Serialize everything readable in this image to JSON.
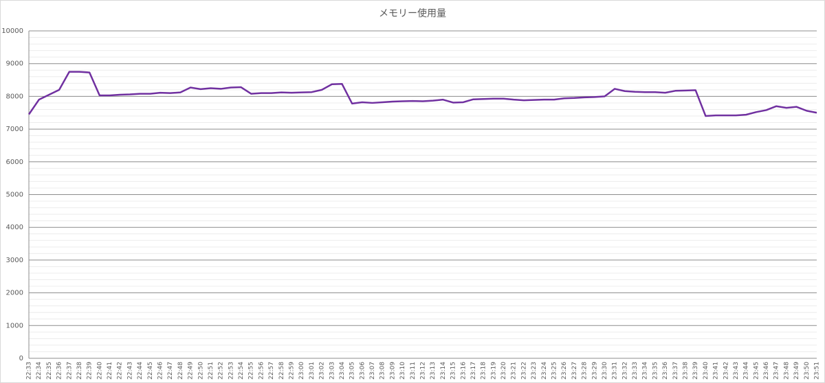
{
  "chart_data": {
    "type": "line",
    "title": "メモリー使用量",
    "categories": [
      "22:33",
      "22:34",
      "22:35",
      "22:36",
      "22:37",
      "22:38",
      "22:39",
      "22:40",
      "22:41",
      "22:42",
      "22:43",
      "22:44",
      "22:45",
      "22:46",
      "22:47",
      "22:48",
      "22:49",
      "22:50",
      "22:51",
      "22:52",
      "22:53",
      "22:54",
      "22:55",
      "22:56",
      "22:57",
      "22:58",
      "22:59",
      "23:00",
      "23:01",
      "23:02",
      "23:03",
      "23:04",
      "23:05",
      "23:06",
      "23:07",
      "23:08",
      "23:09",
      "23:10",
      "23:11",
      "23:12",
      "23:13",
      "23:14",
      "23:15",
      "23:16",
      "23:17",
      "23:18",
      "23:19",
      "23:20",
      "23:21",
      "23:22",
      "23:23",
      "23:24",
      "23:25",
      "23:26",
      "23:27",
      "23:28",
      "23:29",
      "23:30",
      "23:31",
      "23:32",
      "23:33",
      "23:34",
      "23:35",
      "23:36",
      "23:37",
      "23:38",
      "23:39",
      "23:40",
      "23:41",
      "23:42",
      "23:43",
      "23:44",
      "23:45",
      "23:46",
      "23:47",
      "23:48",
      "23:49",
      "23:50",
      "23:51"
    ],
    "series": [
      {
        "name": "メモリー使用量",
        "color": "#7030a0",
        "values": [
          7450,
          7900,
          8050,
          8200,
          8750,
          8750,
          8730,
          8030,
          8030,
          8050,
          8060,
          8080,
          8080,
          8110,
          8100,
          8120,
          8270,
          8220,
          8250,
          8230,
          8270,
          8280,
          8080,
          8100,
          8100,
          8120,
          8110,
          8120,
          8130,
          8200,
          8370,
          8380,
          7780,
          7820,
          7800,
          7820,
          7840,
          7850,
          7860,
          7850,
          7870,
          7900,
          7810,
          7820,
          7910,
          7920,
          7930,
          7930,
          7900,
          7880,
          7890,
          7900,
          7900,
          7940,
          7950,
          7970,
          7980,
          8000,
          8230,
          8160,
          8140,
          8130,
          8130,
          8110,
          8170,
          8180,
          8190,
          7400,
          7420,
          7420,
          7420,
          7440,
          7520,
          7580,
          7700,
          7650,
          7680,
          7560,
          7500
        ]
      }
    ],
    "ylim": [
      0,
      10000
    ],
    "yticks": [
      0,
      1000,
      2000,
      3000,
      4000,
      5000,
      6000,
      7000,
      8000,
      9000,
      10000
    ],
    "grid": true,
    "minor_grid": true
  }
}
